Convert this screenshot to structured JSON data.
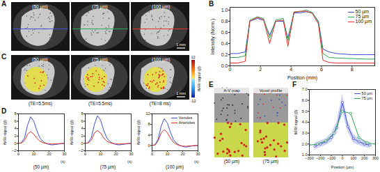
{
  "panel_labels": [
    "A",
    "B",
    "C",
    "D",
    "E",
    "F"
  ],
  "image_panels": {
    "A": {
      "images": [
        "(50 µm)",
        "(75 µm)",
        "(100 µm)"
      ],
      "scale_bar": "1 mm"
    },
    "C": {
      "images": [
        "(50 µm)",
        "(75 µm)",
        "(100 µm)"
      ],
      "echo_times": [
        "(TE=5.5ms)",
        "(TE=5.5ms)",
        "(TE=8 ms)"
      ],
      "scale_bar": "1 mm",
      "colorbar": {
        "label": "fMRI signal (β)",
        "range": [
          -12,
          12
        ],
        "ticks": [
          -12,
          12
        ]
      }
    },
    "E": {
      "image_titles": [
        "A-V map",
        "Voxel profile"
      ],
      "resolutions": [
        "(50 µm)",
        "(75 µm)"
      ]
    }
  },
  "chart_data": [
    {
      "type": "line",
      "x": [
        0,
        0.5,
        1,
        1.3,
        1.8,
        2.2,
        2.6,
        3,
        3.5,
        3.8,
        4.2,
        4.6,
        5,
        5.4,
        5.8,
        6.1,
        6.5,
        7,
        8,
        9,
        9.5
      ],
      "xlim": [
        0,
        9.5
      ],
      "xticks": [
        0,
        2,
        4,
        6,
        8
      ],
      "ylim": [
        0,
        1.05
      ],
      "yticks": [
        0,
        0.2,
        0.4,
        0.6,
        0.8,
        1
      ],
      "xlabel": "Position (mm)",
      "ylabel": "Intensity (Norm.)",
      "legend": "top-right",
      "series": [
        {
          "name": "50 µm",
          "color": "#3b4fd8",
          "values": [
            0.22,
            0.22,
            0.25,
            0.8,
            0.85,
            0.82,
            0.55,
            0.8,
            0.8,
            0.5,
            0.95,
            0.95,
            0.97,
            0.95,
            0.8,
            0.3,
            0.25,
            0.22,
            0.2,
            0.2,
            0.2
          ]
        },
        {
          "name": "75 µm",
          "color": "#2ea44f",
          "values": [
            0.15,
            0.15,
            0.18,
            0.82,
            0.88,
            0.85,
            0.5,
            0.82,
            0.85,
            0.45,
            0.97,
            0.97,
            1,
            0.96,
            0.78,
            0.22,
            0.15,
            0.14,
            0.13,
            0.12,
            0.12
          ]
        },
        {
          "name": "100 µm",
          "color": "#e0312b",
          "values": [
            0.05,
            0.05,
            0.08,
            0.8,
            0.87,
            0.83,
            0.4,
            0.8,
            0.82,
            0.35,
            0.96,
            0.98,
            0.98,
            0.94,
            0.75,
            0.1,
            0.06,
            0.05,
            0.05,
            0.05,
            0.05
          ]
        }
      ]
    },
    {
      "type": "line",
      "subtitle": "(50 µm)",
      "x": [
        0,
        2,
        4,
        6,
        8,
        10,
        12,
        14,
        16,
        18,
        20,
        22,
        24,
        26,
        28,
        30
      ],
      "xlim": [
        0,
        30
      ],
      "xticks": [
        0,
        10,
        20,
        30
      ],
      "ylim": [
        -2,
        8
      ],
      "yticks": [
        -2,
        0,
        2,
        4,
        6,
        8
      ],
      "xlabel": "(s)",
      "ylabel": "fMRI signal (β)",
      "series": [
        {
          "name": "Venules",
          "color": "#3b4fd8",
          "values": [
            0,
            0.2,
            1.5,
            5,
            7.2,
            6,
            3.5,
            1.5,
            0.5,
            0,
            -0.3,
            -0.4,
            -0.3,
            -0.2,
            -0.1,
            0
          ]
        },
        {
          "name": "Arterioles",
          "color": "#e0312b",
          "values": [
            0,
            0.1,
            0.8,
            2.5,
            3.2,
            2.5,
            1.4,
            0.6,
            0.2,
            0,
            -0.1,
            -0.2,
            -0.1,
            -0.1,
            0,
            0
          ]
        }
      ]
    },
    {
      "type": "line",
      "subtitle": "(75 µm)",
      "x": [
        0,
        2,
        4,
        6,
        8,
        10,
        12,
        14,
        16,
        18,
        20,
        22,
        24,
        26,
        28,
        30
      ],
      "xlim": [
        0,
        30
      ],
      "xticks": [
        0,
        10,
        20,
        30
      ],
      "ylim": [
        -2,
        8
      ],
      "yticks": [
        -2,
        0,
        2,
        4,
        6,
        8
      ],
      "xlabel": "(s)",
      "ylabel": "fMRI signal (β)",
      "series": [
        {
          "name": "Venules",
          "color": "#3b4fd8",
          "values": [
            0,
            0.2,
            1.6,
            5.2,
            7.5,
            6.3,
            3.6,
            1.5,
            0.5,
            0,
            -0.3,
            -0.4,
            -0.3,
            -0.2,
            -0.1,
            0
          ]
        },
        {
          "name": "Arterioles",
          "color": "#e0312b",
          "values": [
            0,
            0.1,
            0.9,
            2.8,
            3.5,
            2.8,
            1.5,
            0.6,
            0.2,
            0,
            -0.1,
            -0.2,
            -0.1,
            -0.1,
            0,
            0
          ]
        }
      ]
    },
    {
      "type": "line",
      "subtitle": "(100 µm)",
      "x": [
        0,
        2,
        4,
        6,
        8,
        10,
        12,
        14,
        16,
        18,
        20,
        22,
        24,
        26,
        28,
        30
      ],
      "xlim": [
        0,
        30
      ],
      "xticks": [
        0,
        10,
        20,
        30
      ],
      "ylim": [
        -2,
        12
      ],
      "yticks": [
        0,
        4,
        8,
        12
      ],
      "xlabel": "(s)",
      "ylabel": "fMRI signal (β)",
      "legend": "top-right",
      "series": [
        {
          "name": "Venules",
          "color": "#3b4fd8",
          "values": [
            0,
            0.3,
            2.5,
            7.5,
            10.2,
            8.5,
            5,
            2.2,
            0.8,
            0.1,
            -0.4,
            -0.6,
            -0.4,
            -0.2,
            -0.1,
            0
          ]
        },
        {
          "name": "Arterioles",
          "color": "#e0312b",
          "values": [
            0,
            0.2,
            1.8,
            4.8,
            6,
            4.8,
            2.8,
            1.2,
            0.4,
            0,
            -0.2,
            -0.3,
            -0.2,
            -0.1,
            0,
            0
          ]
        }
      ]
    },
    {
      "type": "line",
      "xlim": [
        -300,
        300
      ],
      "xticks": [
        -300,
        -200,
        -100,
        0,
        100,
        200,
        300
      ],
      "ylim": [
        1,
        7
      ],
      "yticks": [
        1,
        2,
        3,
        4,
        5,
        6,
        7
      ],
      "xlabel": "Position (µm)",
      "ylabel": "fMRI signal (β)",
      "legend": "top-right",
      "series": [
        {
          "name": "50 µm",
          "color": "#3b4fd8",
          "marker": "circle",
          "x": [
            -250,
            -200,
            -150,
            -100,
            -50,
            0,
            50,
            100,
            150,
            200,
            250
          ],
          "values": [
            1.8,
            2,
            2.2,
            2.6,
            3.5,
            5.8,
            3.6,
            2.5,
            2.2,
            2,
            1.9
          ],
          "error": [
            0.3,
            0.3,
            0.3,
            0.4,
            0.5,
            0.8,
            0.5,
            0.4,
            0.3,
            0.3,
            0.3
          ]
        },
        {
          "name": "75 µm",
          "color": "#2ea44f",
          "marker": "circle",
          "x": [
            -300,
            -225,
            -150,
            -75,
            0,
            75,
            150,
            225,
            300
          ],
          "values": [
            1.9,
            2,
            2.3,
            3,
            5,
            4.8,
            2.6,
            2.1,
            2
          ]
        }
      ]
    }
  ]
}
